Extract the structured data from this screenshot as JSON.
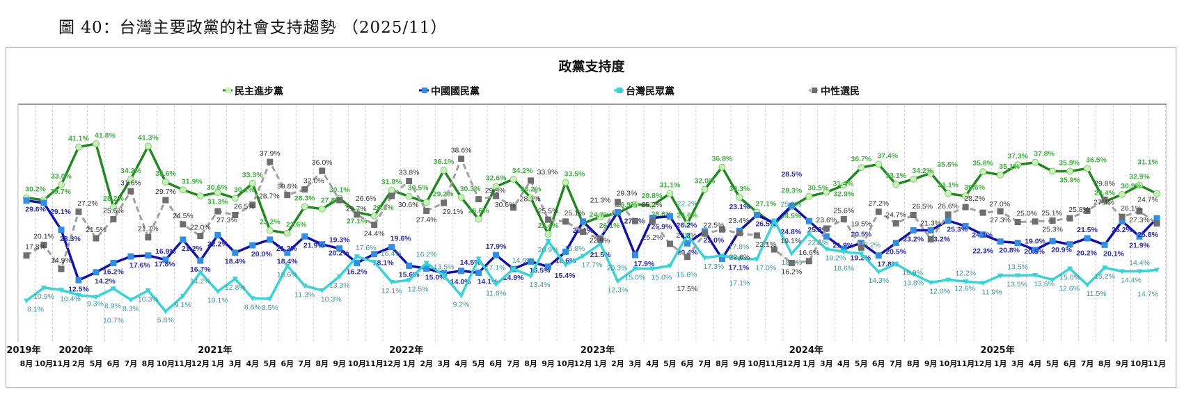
{
  "figure_title": "圖 40：台灣主要政黨的社會支持趨勢 （2025/11）",
  "chart_data": {
    "type": "line",
    "title": "政黨支持度",
    "legend_position": "top",
    "ylim": [
      0,
      50
    ],
    "grid": "vertical dashed",
    "years": [
      {
        "label": "2019年",
        "start_index": 0
      },
      {
        "label": "2020年",
        "start_index": 3
      },
      {
        "label": "2021年",
        "start_index": 11
      },
      {
        "label": "2022年",
        "start_index": 22
      },
      {
        "label": "2023年",
        "start_index": 33
      },
      {
        "label": "2024年",
        "start_index": 45
      },
      {
        "label": "2025年",
        "start_index": 56
      }
    ],
    "categories": [
      "8月",
      "10月",
      "11月",
      "2月",
      "5月",
      "6月",
      "7月",
      "8月",
      "10月",
      "11月",
      "12月",
      "1月",
      "3月",
      "4月",
      "5月",
      "6月",
      "7月",
      "8月",
      "9月",
      "10月",
      "11月",
      "12月",
      "1月",
      "2月",
      "3月",
      "4月",
      "5月",
      "6月",
      "7月",
      "8月",
      "9月",
      "10月",
      "12月",
      "1月",
      "2月",
      "3月",
      "4月",
      "5月",
      "6月",
      "7月",
      "8月",
      "9月",
      "10月",
      "11月",
      "12月",
      "1月",
      "3月",
      "4月",
      "5月",
      "6月",
      "7月",
      "8月",
      "9月",
      "10月",
      "11月",
      "12月",
      "1月",
      "3月",
      "4月",
      "5月",
      "6月",
      "7月",
      "8月",
      "9月",
      "10月",
      "11月"
    ],
    "series": [
      {
        "name": "民主進步黨",
        "color": "#1e8a1e",
        "marker_color": "#c8f0b8",
        "label_color": "#3cb43c",
        "marker": "circle",
        "values": [
          30.2,
          29.7,
          33.0,
          41.1,
          41.8,
          28.2,
          34.2,
          41.3,
          33.6,
          31.9,
          30.6,
          31.3,
          30.1,
          33.3,
          23.2,
          22.6,
          28.3,
          27.8,
          30.1,
          27.1,
          26.3,
          31.8,
          30.5,
          29.2,
          36.1,
          30.3,
          25.6,
          32.6,
          34.2,
          30.2,
          22.4,
          33.5,
          24.7,
          26.1,
          26.9,
          28.8,
          28.6,
          31.1,
          24.6,
          32.0,
          36.8,
          30.3,
          27.1,
          24.5,
          28.3,
          30.5,
          31.4,
          32.9,
          36.7,
          37.4,
          33.1,
          34.2,
          35.5,
          31.1,
          30.6,
          35.8,
          35.1,
          37.3,
          37.8,
          35.9,
          35.9,
          36.5,
          29.4,
          30.9,
          32.9,
          31.1
        ]
      },
      {
        "name": "中國國民黨",
        "color": "#1010b4",
        "marker_color": "#2f8fe6",
        "label_color": "#2a2ac0",
        "marker": "square",
        "values": [
          29.6,
          29.1,
          23.3,
          12.5,
          14.2,
          16.2,
          17.6,
          17.8,
          16.9,
          21.2,
          16.7,
          22.2,
          18.4,
          20.0,
          21.2,
          18.4,
          21.9,
          20.2,
          19.3,
          16.2,
          18.1,
          19.6,
          15.6,
          15.0,
          14.0,
          14.5,
          14.1,
          17.9,
          14.9,
          16.5,
          15.4,
          18.6,
          25.1,
          21.5,
          27.1,
          17.9,
          25.9,
          26.2,
          20.4,
          23.0,
          17.1,
          23.1,
          26.5,
          24.8,
          28.5,
          25.2,
          21.9,
          19.2,
          20.5,
          17.8,
          20.5,
          23.2,
          23.2,
          25.3,
          24.1,
          22.3,
          20.8,
          20.5,
          19.0,
          20.9,
          20.2,
          21.5,
          20.1,
          25.2,
          21.9,
          25.8
        ]
      },
      {
        "name": "台灣民眾黨",
        "color": "#33d6d6",
        "marker_color": "#33d6d6",
        "label_color": "#3a9a9a",
        "marker": "triangle",
        "values": [
          8.1,
          10.9,
          10.4,
          9.3,
          8.9,
          10.7,
          8.3,
          10.3,
          5.8,
          9.1,
          14.2,
          10.1,
          12.8,
          8.6,
          8.5,
          15.6,
          11.3,
          10.3,
          13.3,
          17.6,
          16.4,
          12.1,
          12.5,
          16.2,
          13.5,
          9.2,
          17.1,
          11.6,
          14.9,
          13.4,
          20.9,
          15.8,
          17.7,
          20.3,
          12.3,
          15.0,
          15.0,
          15.6,
          22.2,
          17.3,
          17.8,
          17.1,
          17.0,
          25.3,
          18.2,
          22.5,
          19.2,
          18.6,
          18.2,
          14.3,
          16.0,
          13.8,
          12.0,
          12.6,
          12.2,
          11.9,
          13.5,
          13.5,
          13.6,
          12.6,
          15.0,
          11.5,
          15.2,
          14.4,
          14.4,
          14.7
        ]
      },
      {
        "name": "中性選民",
        "color": "#a0a0a0",
        "marker_color": "#6e6e6e",
        "label_color": "#333333",
        "marker": "square",
        "dashed": true,
        "values": [
          17.8,
          20.1,
          14.9,
          27.2,
          21.5,
          25.6,
          31.6,
          21.7,
          29.7,
          24.5,
          22.0,
          27.3,
          26.5,
          28.7,
          37.9,
          30.8,
          32.0,
          36.0,
          29.7,
          26.6,
          24.4,
          30.6,
          33.8,
          27.4,
          29.1,
          38.6,
          29.9,
          30.6,
          28.1,
          33.9,
          25.5,
          25.1,
          22.9,
          21.3,
          29.3,
          25.2,
          25.2,
          20.3,
          17.5,
          22.5,
          23.4,
          22.6,
          22.1,
          19.1,
          16.2,
          16.6,
          23.6,
          25.6,
          19.5,
          27.2,
          24.7,
          26.5,
          21.3,
          26.6,
          28.2,
          27.0,
          27.3,
          25.0,
          25.1,
          25.3,
          25.8,
          27.4,
          29.8,
          26.1,
          27.3,
          24.7
        ]
      }
    ]
  }
}
